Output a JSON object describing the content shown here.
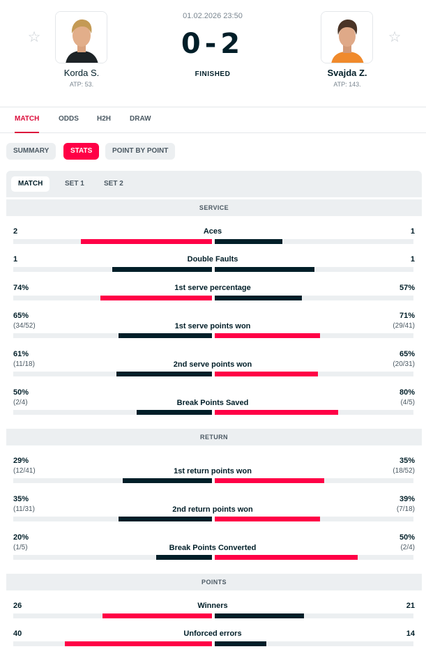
{
  "match": {
    "datetime": "01.02.2026 23:50",
    "score": "0-2",
    "status": "FINISHED"
  },
  "home": {
    "name": "Korda S.",
    "rank": "ATP: 53."
  },
  "away": {
    "name": "Svajda Z.",
    "rank": "ATP: 143."
  },
  "tabs": [
    "MATCH",
    "ODDS",
    "H2H",
    "DRAW"
  ],
  "subtabs": [
    "SUMMARY",
    "STATS",
    "POINT BY POINT"
  ],
  "periods": [
    "MATCH",
    "SET 1",
    "SET 2"
  ],
  "colors": {
    "accent": "#ff0046",
    "dark": "#001e28",
    "track": "#eceff1"
  },
  "icons": {
    "favorite": "star-icon"
  },
  "sections": [
    {
      "title": "SERVICE",
      "stats": [
        {
          "name": "Aces",
          "home": "2",
          "away": "1",
          "home_fill": 0.66,
          "away_fill": 0.34,
          "winner": "home"
        },
        {
          "name": "Double Faults",
          "home": "1",
          "away": "1",
          "home_fill": 0.5,
          "away_fill": 0.5,
          "winner": "none"
        },
        {
          "name": "1st serve percentage",
          "home": "74%",
          "away": "57%",
          "home_fill": 0.56,
          "away_fill": 0.44,
          "winner": "home"
        },
        {
          "name": "1st serve points won",
          "home": "65%",
          "home_sub": "(34/52)",
          "away": "71%",
          "away_sub": "(29/41)",
          "home_fill": 0.47,
          "away_fill": 0.53,
          "winner": "away"
        },
        {
          "name": "2nd serve points won",
          "home": "61%",
          "home_sub": "(11/18)",
          "away": "65%",
          "away_sub": "(20/31)",
          "home_fill": 0.48,
          "away_fill": 0.52,
          "winner": "away"
        },
        {
          "name": "Break Points Saved",
          "home": "50%",
          "home_sub": "(2/4)",
          "away": "80%",
          "away_sub": "(4/5)",
          "home_fill": 0.38,
          "away_fill": 0.62,
          "winner": "away"
        }
      ]
    },
    {
      "title": "RETURN",
      "stats": [
        {
          "name": "1st return points won",
          "home": "29%",
          "home_sub": "(12/41)",
          "away": "35%",
          "away_sub": "(18/52)",
          "home_fill": 0.45,
          "away_fill": 0.55,
          "winner": "away"
        },
        {
          "name": "2nd return points won",
          "home": "35%",
          "home_sub": "(11/31)",
          "away": "39%",
          "away_sub": "(7/18)",
          "home_fill": 0.47,
          "away_fill": 0.53,
          "winner": "away"
        },
        {
          "name": "Break Points Converted",
          "home": "20%",
          "home_sub": "(1/5)",
          "away": "50%",
          "away_sub": "(2/4)",
          "home_fill": 0.28,
          "away_fill": 0.72,
          "winner": "away"
        }
      ]
    },
    {
      "title": "POINTS",
      "stats": [
        {
          "name": "Winners",
          "home": "26",
          "away": "21",
          "home_fill": 0.55,
          "away_fill": 0.45,
          "winner": "home"
        },
        {
          "name": "Unforced errors",
          "home": "40",
          "away": "14",
          "home_fill": 0.74,
          "away_fill": 0.26,
          "winner": "home"
        }
      ]
    }
  ]
}
